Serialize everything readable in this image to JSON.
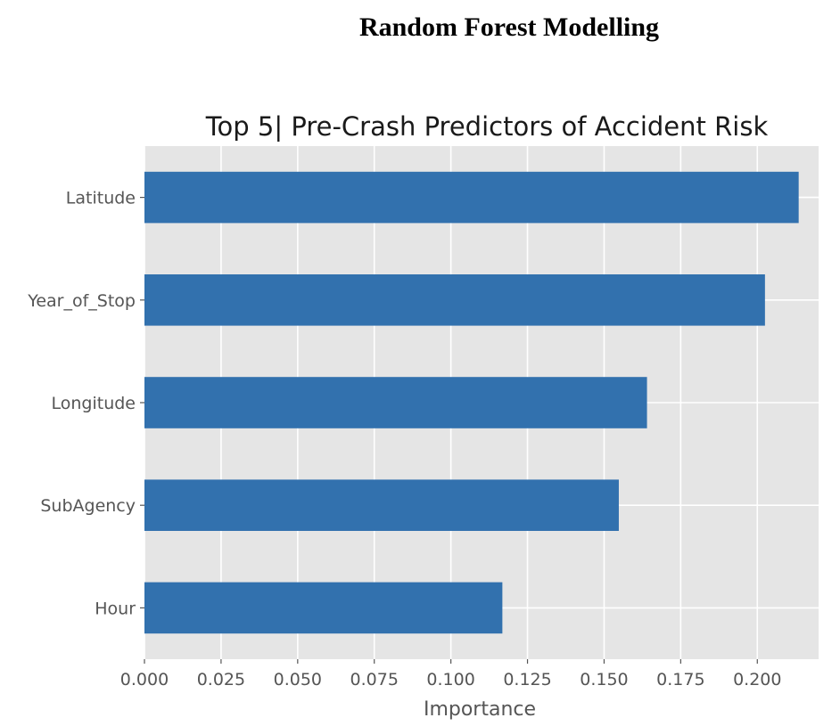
{
  "heading": "Random Forest Modelling",
  "chart_data": {
    "type": "bar",
    "orientation": "horizontal",
    "title": "Top 5| Pre-Crash Predictors of Accident Risk",
    "xlabel": "Importance",
    "ylabel": "",
    "categories": [
      "Latitude",
      "Year_of_Stop",
      "Longitude",
      "SubAgency",
      "Hour"
    ],
    "values": [
      0.2135,
      0.2025,
      0.164,
      0.1548,
      0.1168
    ],
    "xlim": [
      0,
      0.22
    ],
    "xticks": [
      0.0,
      0.025,
      0.05,
      0.075,
      0.1,
      0.125,
      0.15,
      0.175,
      0.2
    ],
    "xtick_labels": [
      "0.000",
      "0.025",
      "0.050",
      "0.075",
      "0.100",
      "0.125",
      "0.150",
      "0.175",
      "0.200"
    ],
    "grid": true,
    "style": "ggplot",
    "bar_color": "#3271ae",
    "background_color": "#e5e5e5",
    "grid_color": "#ffffff"
  }
}
